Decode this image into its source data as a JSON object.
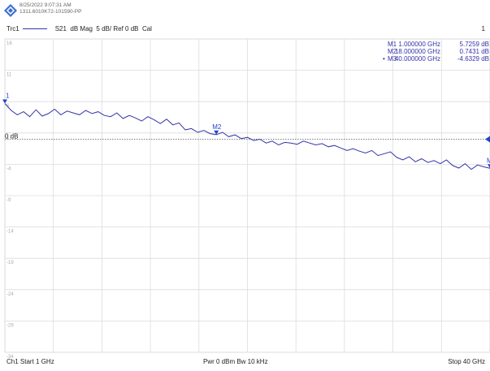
{
  "header": {
    "timestamp": "8/25/2022 9:07:31 AM",
    "instrument_id": "1311.6010K72-101590-PP",
    "channel_number": "1",
    "trace": {
      "name": "Trc1",
      "parameter": "S21",
      "format": "dB Mag",
      "scale": "5 dB/",
      "reference": "Ref 0 dB",
      "calibration": "Cal",
      "color": "#3333aa"
    }
  },
  "markers": [
    {
      "id": "M1",
      "freq": "1.000000 GHz",
      "value": "5.7259 dB",
      "active": false
    },
    {
      "id": "M2",
      "freq": "18.000000 GHz",
      "value": "0.7431 dB",
      "active": false
    },
    {
      "id": "M3",
      "freq": "40.000000 GHz",
      "value": "-4.6329 dB",
      "active": true
    }
  ],
  "marker_labels": {
    "m1": "1",
    "m2": "M2",
    "m3": "M"
  },
  "ref_label": "0 dB",
  "y_tick_labels": [
    "16",
    "11",
    "6",
    "1",
    "-4",
    "-9",
    "-14",
    "-19",
    "-24",
    "-29",
    "-34"
  ],
  "footer": {
    "start": "Ch1  Start  1 GHz",
    "center": "Pwr  0 dBm  Bw  10 kHz",
    "stop": "Stop  40 GHz"
  },
  "chart_data": {
    "type": "line",
    "x_unit": "GHz",
    "y_unit": "dB",
    "xlim": [
      1,
      40
    ],
    "ylim": [
      -34,
      16
    ],
    "y_ticks": [
      16,
      11,
      6,
      1,
      -4,
      -9,
      -14,
      -19,
      -24,
      -29,
      -34
    ],
    "reference_level": 0,
    "grid": true,
    "series": [
      {
        "name": "S21",
        "x": [
          1,
          1.5,
          2,
          2.5,
          3,
          3.5,
          4,
          4.5,
          5,
          5.5,
          6,
          6.5,
          7,
          7.5,
          8,
          8.5,
          9,
          9.5,
          10,
          10.5,
          11,
          11.5,
          12,
          12.5,
          13,
          13.5,
          14,
          14.5,
          15,
          15.5,
          16,
          16.5,
          17,
          17.5,
          18,
          18.5,
          19,
          19.5,
          20,
          20.5,
          21,
          21.5,
          22,
          22.5,
          23,
          23.5,
          24,
          24.5,
          25,
          25.5,
          26,
          26.5,
          27,
          27.5,
          28,
          28.5,
          29,
          29.5,
          30,
          30.5,
          31,
          31.5,
          32,
          32.5,
          33,
          33.5,
          34,
          34.5,
          35,
          35.5,
          36,
          36.5,
          37,
          37.5,
          38,
          38.5,
          39,
          39.5,
          40
        ],
        "y": [
          5.7,
          4.6,
          3.9,
          4.4,
          3.6,
          4.7,
          3.7,
          4.1,
          4.8,
          3.9,
          4.5,
          4.2,
          3.9,
          4.6,
          4.1,
          4.4,
          3.8,
          3.6,
          4.2,
          3.3,
          3.8,
          3.4,
          2.9,
          3.6,
          3.1,
          2.5,
          3.2,
          2.3,
          2.6,
          1.5,
          1.7,
          1.1,
          1.4,
          0.9,
          0.74,
          1.1,
          0.4,
          0.7,
          0.1,
          0.3,
          -0.2,
          0.0,
          -0.6,
          -0.3,
          -0.9,
          -0.5,
          -0.6,
          -0.8,
          -0.3,
          -0.6,
          -0.9,
          -0.7,
          -1.2,
          -1.0,
          -1.4,
          -1.8,
          -1.5,
          -1.9,
          -2.2,
          -1.8,
          -2.6,
          -2.3,
          -2.0,
          -2.9,
          -3.3,
          -2.8,
          -3.6,
          -3.1,
          -3.7,
          -3.4,
          -3.9,
          -3.3,
          -4.2,
          -4.6,
          -3.9,
          -4.8,
          -4.1,
          -4.4,
          -4.63
        ]
      }
    ]
  }
}
